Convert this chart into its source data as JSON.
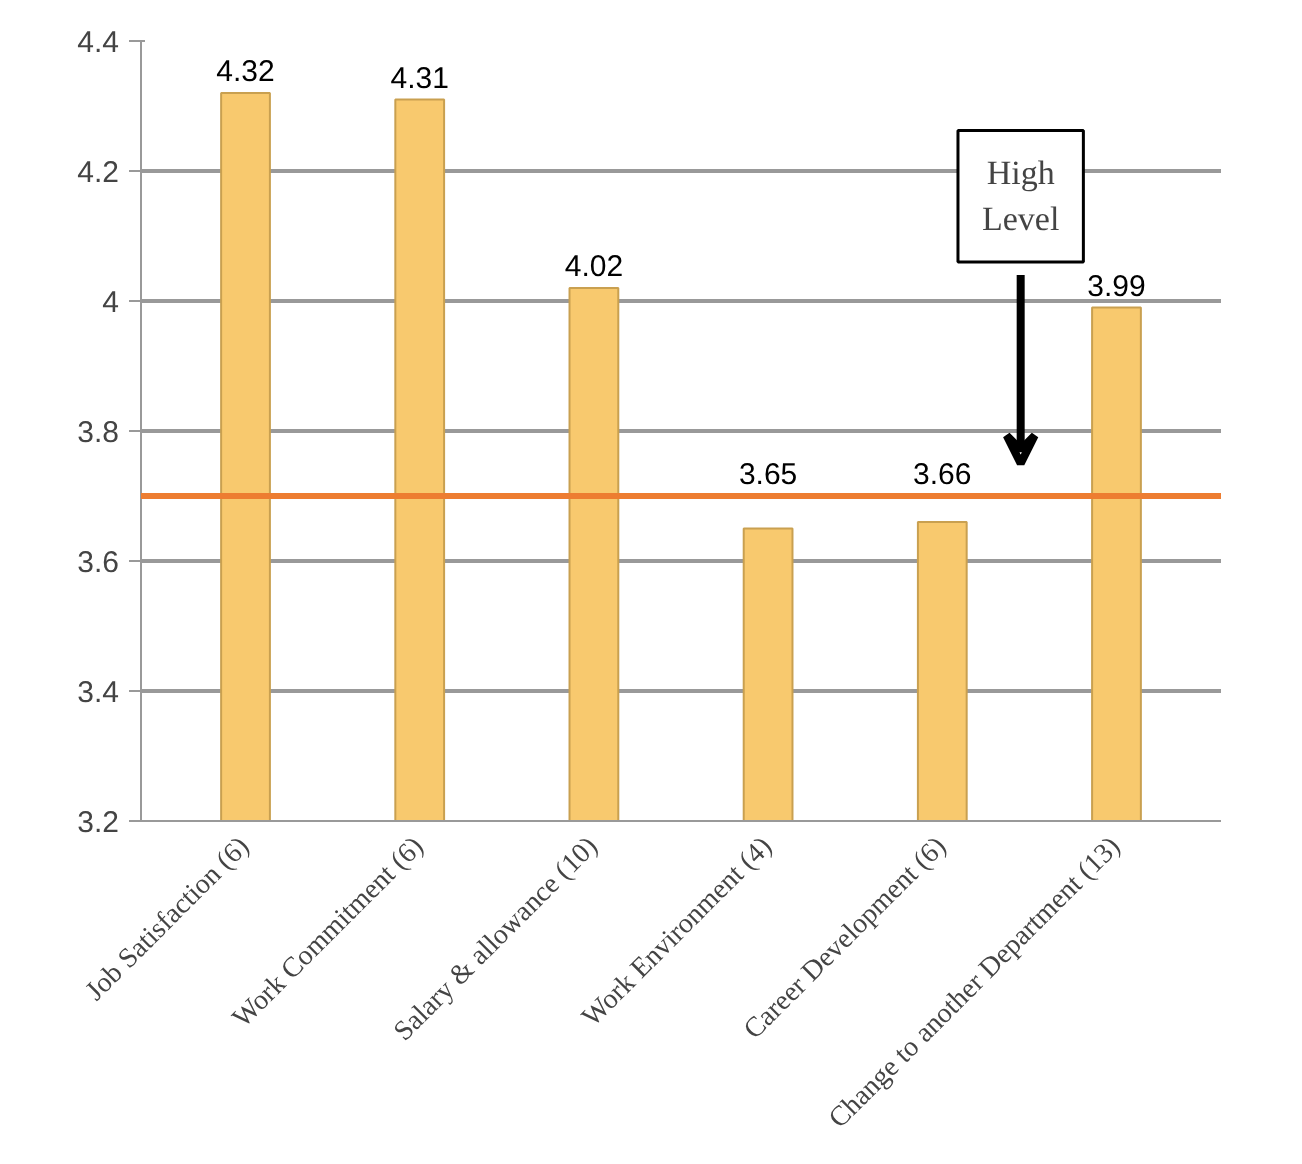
{
  "chart_data": {
    "type": "bar",
    "categories": [
      "Job Satisfaction (6)",
      "Work Commitment (6)",
      "Salary & allowance (10)",
      "Work Environment (4)",
      "Career Development (6)",
      "Change to another Department (13)"
    ],
    "values": [
      4.32,
      4.31,
      4.02,
      3.65,
      3.66,
      3.99
    ],
    "color": "#f8c96e",
    "ylim": [
      3.2,
      4.4
    ],
    "yticks": [
      3.2,
      3.4,
      3.6,
      3.8,
      4,
      4.2,
      4.4
    ],
    "grid": "y",
    "data_labels": true,
    "ref_lines": [
      {
        "axis": "y",
        "value": 3.7,
        "color": "#ed7d31"
      }
    ],
    "annotations": [
      "High Level"
    ]
  }
}
